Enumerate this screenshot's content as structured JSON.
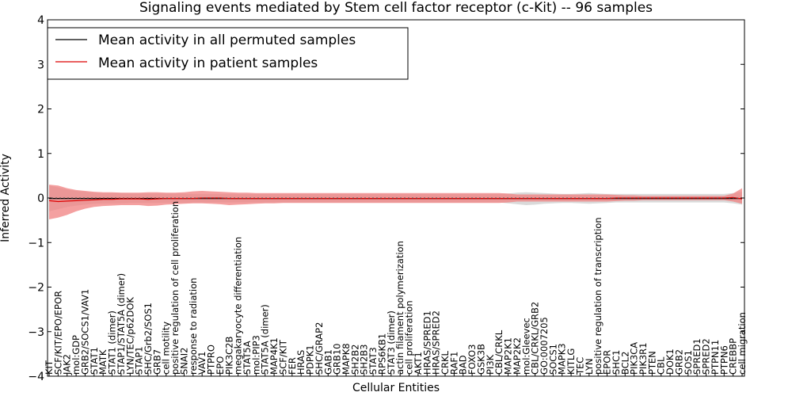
{
  "chart_data": {
    "type": "line",
    "title": "Signaling events mediated by Stem cell factor receptor (c-Kit) -- 96 samples",
    "xlabel": "Cellular Entities",
    "ylabel": "Inferred Activity",
    "ylim": [
      -4,
      4
    ],
    "yticks": [
      -4,
      -3,
      -2,
      -1,
      0,
      1,
      2,
      3,
      4
    ],
    "ytick_labels": [
      "−4",
      "−3",
      "−2",
      "−1",
      "0",
      "1",
      "2",
      "3",
      "4"
    ],
    "legend_position": "top-left",
    "categories": [
      "KIT",
      "SCF/KIT/EPO/EPOR",
      "JAK2",
      "mol:GDP",
      "GRB2/SOCS1/VAV1",
      "STAT1",
      "MATK",
      "STAT1 (dimer)",
      "STAP1/STAT5A (dimer)",
      "LYN/TEC/p62DOK",
      "STAP1",
      "SHC/Grb2/SOS1",
      "GRB7",
      "cell motility",
      "positive regulation of cell proliferation",
      "SNAI2",
      "response to radiation",
      "VAV1",
      "PTPRO",
      "EPO",
      "PIK3C2B",
      "megakaryocyte differentiation",
      "STAT5A",
      "mol:PIP3",
      "STAT5A (dimer)",
      "MAP4K1",
      "SCF/KIT",
      "FER",
      "HRAS",
      "PDPK1",
      "SHC/GRAP2",
      "GAB1",
      "GRB10",
      "MAPK8",
      "SH2B2",
      "SH2B3",
      "STAT3",
      "RPS6KB1",
      "STAT3 (dimer)",
      "actin filament polymerization",
      "cell proliferation",
      "AKT1",
      "HRAS/SPRED1",
      "HRAS/SPRED2",
      "CRKL",
      "RAF1",
      "BAD",
      "FOXO3",
      "GSK3B",
      "PI3K",
      "CBL/CRKL",
      "MAP2K1",
      "MAP2K2",
      "mol:Gleevec",
      "CBL/CRKL/GRB2",
      "GO:0007205",
      "SOCS1",
      "MAPK3",
      "KITLG",
      "TEC",
      "LYN",
      "positive regulation of transcription",
      "EPOR",
      "SHC1",
      "BCL2",
      "PIK3CA",
      "PIK3R1",
      "PTEN",
      "CBL",
      "DOK1",
      "GRB2",
      "SOS1",
      "SPRED1",
      "SPRED2",
      "PTPN11",
      "PTPN6",
      "CREBBP",
      "cell migration"
    ],
    "series": [
      {
        "name": "Mean activity in all permuted samples",
        "color": "#000000",
        "values": [
          -0.01,
          -0.01,
          -0.01,
          -0.01,
          -0.01,
          -0.01,
          -0.01,
          -0.01,
          -0.01,
          -0.01,
          -0.01,
          -0.01,
          -0.01,
          -0.01,
          -0.01,
          -0.01,
          -0.01,
          -0.01,
          -0.01,
          -0.01,
          -0.01,
          -0.01,
          -0.01,
          -0.01,
          -0.01,
          -0.01,
          -0.01,
          -0.01,
          -0.01,
          -0.01,
          -0.01,
          -0.01,
          -0.01,
          -0.01,
          -0.01,
          -0.01,
          -0.01,
          -0.01,
          -0.01,
          -0.01,
          -0.01,
          -0.01,
          -0.01,
          -0.01,
          -0.01,
          -0.01,
          -0.01,
          -0.01,
          -0.01,
          -0.01,
          -0.01,
          -0.01,
          -0.01,
          -0.01,
          -0.01,
          -0.01,
          -0.01,
          -0.01,
          -0.01,
          -0.01,
          -0.01,
          -0.01,
          -0.01,
          -0.01,
          -0.01,
          -0.01,
          -0.01,
          -0.01,
          -0.01,
          -0.01,
          -0.01,
          -0.01,
          -0.01,
          -0.01,
          -0.01,
          -0.01,
          -0.01,
          -0.01
        ],
        "band": {
          "color": "#bbbbbb",
          "low": [
            -0.3,
            -0.25,
            -0.2,
            -0.17,
            -0.15,
            -0.13,
            -0.12,
            -0.12,
            -0.12,
            -0.11,
            -0.11,
            -0.11,
            -0.11,
            -0.11,
            -0.11,
            -0.11,
            -0.1,
            -0.1,
            -0.1,
            -0.1,
            -0.1,
            -0.1,
            -0.1,
            -0.1,
            -0.1,
            -0.1,
            -0.1,
            -0.1,
            -0.1,
            -0.1,
            -0.1,
            -0.1,
            -0.1,
            -0.1,
            -0.1,
            -0.1,
            -0.1,
            -0.1,
            -0.1,
            -0.1,
            -0.1,
            -0.1,
            -0.1,
            -0.1,
            -0.1,
            -0.1,
            -0.1,
            -0.1,
            -0.1,
            -0.1,
            -0.1,
            -0.12,
            -0.14,
            -0.16,
            -0.15,
            -0.13,
            -0.12,
            -0.11,
            -0.11,
            -0.12,
            -0.13,
            -0.12,
            -0.11,
            -0.1,
            -0.1,
            -0.1,
            -0.1,
            -0.1,
            -0.1,
            -0.1,
            -0.1,
            -0.1,
            -0.1,
            -0.1,
            -0.1,
            -0.1,
            -0.12,
            -0.15
          ],
          "high": [
            0.28,
            0.24,
            0.19,
            0.16,
            0.14,
            0.12,
            0.11,
            0.11,
            0.11,
            0.1,
            0.1,
            0.1,
            0.1,
            0.1,
            0.1,
            0.1,
            0.09,
            0.09,
            0.09,
            0.09,
            0.09,
            0.09,
            0.09,
            0.09,
            0.09,
            0.09,
            0.09,
            0.09,
            0.09,
            0.09,
            0.09,
            0.09,
            0.09,
            0.09,
            0.09,
            0.09,
            0.09,
            0.09,
            0.09,
            0.09,
            0.09,
            0.09,
            0.09,
            0.09,
            0.09,
            0.09,
            0.09,
            0.09,
            0.09,
            0.09,
            0.09,
            0.1,
            0.12,
            0.13,
            0.12,
            0.11,
            0.1,
            0.09,
            0.09,
            0.1,
            0.11,
            0.1,
            0.09,
            0.09,
            0.09,
            0.09,
            0.09,
            0.09,
            0.09,
            0.09,
            0.09,
            0.09,
            0.09,
            0.09,
            0.09,
            0.09,
            0.11,
            0.14
          ]
        }
      },
      {
        "name": "Mean activity in patient samples",
        "color": "#dd0000",
        "values": [
          -0.06,
          -0.08,
          -0.07,
          -0.06,
          -0.05,
          -0.04,
          -0.03,
          -0.03,
          -0.02,
          -0.02,
          -0.02,
          -0.03,
          -0.02,
          -0.01,
          -0.01,
          -0.01,
          -0.01,
          0.0,
          0.0,
          0.0,
          -0.01,
          -0.01,
          -0.01,
          -0.01,
          -0.01,
          -0.01,
          -0.01,
          -0.01,
          -0.01,
          -0.01,
          -0.01,
          -0.01,
          -0.01,
          -0.01,
          -0.01,
          -0.01,
          -0.01,
          -0.01,
          -0.01,
          -0.01,
          -0.01,
          -0.01,
          -0.01,
          -0.01,
          -0.01,
          -0.01,
          -0.01,
          -0.01,
          -0.01,
          -0.01,
          -0.01,
          -0.01,
          -0.01,
          -0.01,
          -0.01,
          -0.01,
          -0.01,
          -0.01,
          -0.01,
          -0.01,
          -0.01,
          -0.01,
          -0.01,
          0.0,
          0.0,
          0.0,
          0.0,
          0.0,
          0.0,
          0.0,
          0.0,
          0.0,
          0.0,
          0.0,
          0.0,
          0.0,
          0.01,
          -0.02
        ],
        "band": {
          "color": "#f08080",
          "low": [
            -0.48,
            -0.44,
            -0.38,
            -0.3,
            -0.24,
            -0.2,
            -0.18,
            -0.17,
            -0.16,
            -0.16,
            -0.16,
            -0.18,
            -0.17,
            -0.15,
            -0.14,
            -0.13,
            -0.12,
            -0.12,
            -0.13,
            -0.14,
            -0.16,
            -0.15,
            -0.14,
            -0.13,
            -0.12,
            -0.12,
            -0.11,
            -0.11,
            -0.11,
            -0.11,
            -0.11,
            -0.11,
            -0.11,
            -0.11,
            -0.11,
            -0.11,
            -0.11,
            -0.11,
            -0.11,
            -0.11,
            -0.11,
            -0.11,
            -0.11,
            -0.11,
            -0.11,
            -0.11,
            -0.11,
            -0.11,
            -0.11,
            -0.11,
            -0.11,
            -0.1,
            -0.08,
            -0.08,
            -0.08,
            -0.08,
            -0.08,
            -0.08,
            -0.08,
            -0.08,
            -0.08,
            -0.08,
            -0.08,
            -0.07,
            -0.06,
            -0.06,
            -0.05,
            -0.05,
            -0.05,
            -0.05,
            -0.05,
            -0.05,
            -0.05,
            -0.05,
            -0.05,
            -0.05,
            -0.08,
            -0.13
          ],
          "high": [
            0.3,
            0.28,
            0.22,
            0.18,
            0.16,
            0.14,
            0.13,
            0.13,
            0.12,
            0.12,
            0.12,
            0.13,
            0.13,
            0.12,
            0.12,
            0.13,
            0.15,
            0.16,
            0.15,
            0.14,
            0.13,
            0.12,
            0.12,
            0.11,
            0.11,
            0.11,
            0.11,
            0.11,
            0.11,
            0.11,
            0.11,
            0.11,
            0.11,
            0.11,
            0.11,
            0.11,
            0.11,
            0.11,
            0.11,
            0.11,
            0.11,
            0.11,
            0.11,
            0.11,
            0.11,
            0.11,
            0.11,
            0.11,
            0.11,
            0.11,
            0.11,
            0.1,
            0.08,
            0.08,
            0.08,
            0.08,
            0.08,
            0.08,
            0.08,
            0.08,
            0.08,
            0.08,
            0.08,
            0.07,
            0.06,
            0.06,
            0.05,
            0.05,
            0.05,
            0.05,
            0.05,
            0.05,
            0.05,
            0.05,
            0.05,
            0.05,
            0.1,
            0.22
          ]
        }
      }
    ]
  }
}
